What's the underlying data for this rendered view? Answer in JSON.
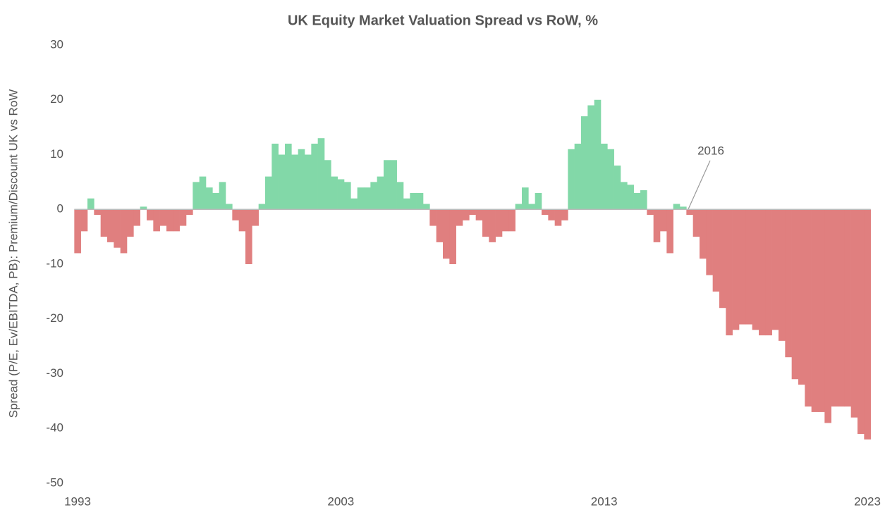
{
  "chart_data": {
    "type": "bar",
    "title": "UK Equity Market Valuation Spread vs RoW, %",
    "y_label": "Spread (P/E, Ev/EBITDA, PB): Premium/Discount UK vs RoW",
    "annotation": "2016",
    "categories": [
      "1993",
      null,
      null,
      null,
      null,
      null,
      null,
      null,
      null,
      null,
      null,
      null,
      null,
      null,
      null,
      null,
      null,
      null,
      null,
      null,
      null,
      null,
      null,
      null,
      null,
      null,
      null,
      null,
      null,
      null,
      null,
      null,
      null,
      null,
      null,
      null,
      null,
      null,
      null,
      null,
      "2003",
      null,
      null,
      null,
      null,
      null,
      null,
      null,
      null,
      null,
      null,
      null,
      null,
      null,
      null,
      null,
      null,
      null,
      null,
      null,
      null,
      null,
      null,
      null,
      null,
      null,
      null,
      null,
      null,
      null,
      null,
      null,
      null,
      null,
      null,
      null,
      null,
      null,
      null,
      null,
      "2013",
      null,
      null,
      null,
      null,
      null,
      null,
      null,
      null,
      null,
      null,
      null,
      null,
      null,
      null,
      null,
      null,
      null,
      null,
      null,
      null,
      null,
      null,
      null,
      null,
      null,
      null,
      null,
      null,
      null,
      null,
      null,
      null,
      null,
      null,
      null,
      null,
      null,
      null,
      null,
      "2023"
    ],
    "values": [
      -8,
      -4,
      2,
      -1,
      -5,
      -6,
      -7,
      -8,
      -5,
      -3,
      0.5,
      -2,
      -4,
      -3,
      -4,
      -4,
      -3,
      -1,
      5,
      6,
      4,
      3,
      5,
      1,
      -2,
      -4,
      -10,
      -3,
      1,
      6,
      12,
      10,
      12,
      10,
      11,
      10,
      12,
      13,
      9,
      6,
      5.5,
      5,
      2,
      4,
      4,
      5,
      6,
      9,
      9,
      5,
      2,
      3,
      3,
      1,
      -3,
      -6,
      -9,
      -10,
      -3,
      -2,
      -1,
      -2,
      -5,
      -6,
      -5,
      -4,
      -4,
      1,
      4,
      1,
      3,
      -1,
      -2,
      -3,
      -2,
      11,
      12,
      17,
      19,
      20,
      12,
      11,
      8,
      5,
      4.5,
      3,
      3.5,
      -1,
      -6,
      -4,
      -8,
      1,
      0.5,
      -1,
      -5,
      -9,
      -12,
      -15,
      -18,
      -23,
      -22,
      -21,
      -21,
      -22,
      -23,
      -23,
      -22,
      -24,
      -27,
      -31,
      -32,
      -36,
      -37,
      -37,
      -39,
      -36,
      -36,
      -36,
      -38,
      -41,
      -42
    ],
    "positive_color": "#82d8a8",
    "negative_color": "#e07f7f",
    "ylim": [
      -50,
      30
    ],
    "yticks": [
      -50,
      -40,
      -30,
      -20,
      -10,
      0,
      10,
      20,
      30
    ],
    "grid": false
  }
}
